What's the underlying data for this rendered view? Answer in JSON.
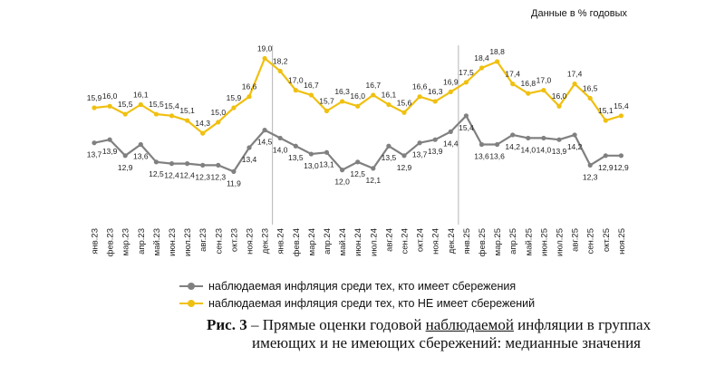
{
  "chart_data": {
    "type": "line",
    "unit_note": "Данные в % годовых",
    "categories": [
      "янв.23",
      "фев.23",
      "мар.23",
      "апр.23",
      "май.23",
      "июн.23",
      "июл.23",
      "авг.23",
      "сен.23",
      "окт.23",
      "ноя.23",
      "дек.23",
      "янв.24",
      "фев.24",
      "мар.24",
      "апр.24",
      "май.24",
      "июн.24",
      "июл.24",
      "авг.24",
      "сен.24",
      "окт.24",
      "ноя.24",
      "дек.24",
      "янв.25",
      "фев.25",
      "мар.25",
      "апр.25",
      "май.25",
      "июн.25",
      "июл.25",
      "авг.25",
      "сен.25",
      "окт.25",
      "ноя.25"
    ],
    "series": [
      {
        "name": "наблюдаемая инфляция  среди тех, кто имеет сбережения",
        "color": "#808080",
        "values": [
          13.7,
          13.9,
          12.9,
          13.6,
          12.5,
          12.4,
          12.4,
          12.3,
          12.3,
          11.9,
          13.4,
          14.5,
          14.0,
          13.5,
          13.0,
          13.1,
          12.0,
          12.5,
          12.1,
          13.5,
          12.9,
          13.7,
          13.9,
          14.4,
          15.4,
          13.6,
          13.6,
          14.2,
          14.0,
          14.0,
          13.9,
          14.2,
          12.3,
          12.9,
          12.9
        ]
      },
      {
        "name": "наблюдаемая инфляция  среди тех, кто НЕ имеет сбережений",
        "color": "#F0C010",
        "values": [
          15.9,
          16.0,
          15.5,
          16.1,
          15.5,
          15.4,
          15.1,
          14.3,
          15.0,
          15.9,
          16.6,
          19.0,
          18.2,
          17.0,
          16.7,
          15.7,
          16.3,
          16.0,
          16.7,
          16.1,
          15.6,
          16.6,
          16.3,
          16.9,
          17.5,
          18.4,
          18.8,
          17.4,
          16.8,
          17.0,
          16.0,
          17.4,
          16.5,
          15.1,
          15.4
        ]
      }
    ],
    "separators_after": [
      "дек.23",
      "дек.24"
    ],
    "grid": false,
    "legend_position": "bottom"
  },
  "caption": {
    "fig_label": "Рис. 3",
    "text_before": " – Прямые оценки годовой ",
    "underlined": "наблюдаемой",
    "text_after": " инфляции в группах",
    "line2": "имеющих и не имеющих сбережений: медианные значения"
  }
}
